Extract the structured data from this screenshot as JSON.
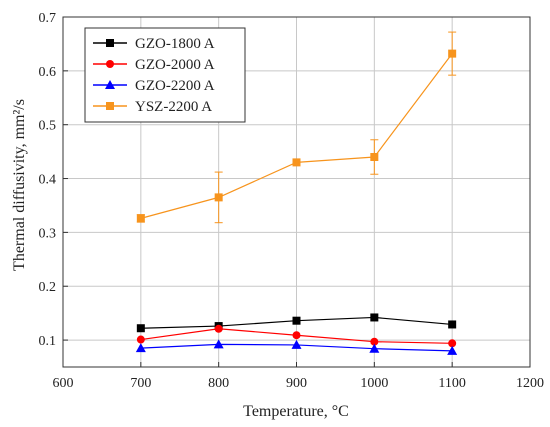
{
  "chart_data": {
    "type": "line",
    "xlabel": "Temperature, °C",
    "ylabel": "Thermal diffusivity, mm²/s",
    "xlim": [
      600,
      1200
    ],
    "ylim": [
      0.05,
      0.7
    ],
    "xticks": [
      600,
      700,
      800,
      900,
      1000,
      1100,
      1200
    ],
    "yticks": [
      0.1,
      0.2,
      0.3,
      0.4,
      0.5,
      0.6,
      0.7
    ],
    "grid": true,
    "legend_position": "top-left",
    "x": [
      700,
      800,
      900,
      1000,
      1100
    ],
    "series": [
      {
        "name": "GZO-1800 A",
        "color": "#000000",
        "marker": "square",
        "values": [
          0.122,
          0.126,
          0.136,
          0.142,
          0.129
        ]
      },
      {
        "name": "GZO-2000 A",
        "color": "#ff0000",
        "marker": "circle",
        "values": [
          0.101,
          0.121,
          0.109,
          0.097,
          0.094
        ]
      },
      {
        "name": "GZO-2200 A",
        "color": "#0000ff",
        "marker": "triangle",
        "values": [
          0.085,
          0.092,
          0.091,
          0.084,
          0.08
        ]
      },
      {
        "name": "YSZ-2200 A",
        "color": "#f7941d",
        "marker": "square",
        "values": [
          0.326,
          0.365,
          0.43,
          0.44,
          0.632
        ],
        "errors": [
          0.007,
          0.047,
          0.005,
          0.032,
          0.04
        ]
      }
    ]
  }
}
